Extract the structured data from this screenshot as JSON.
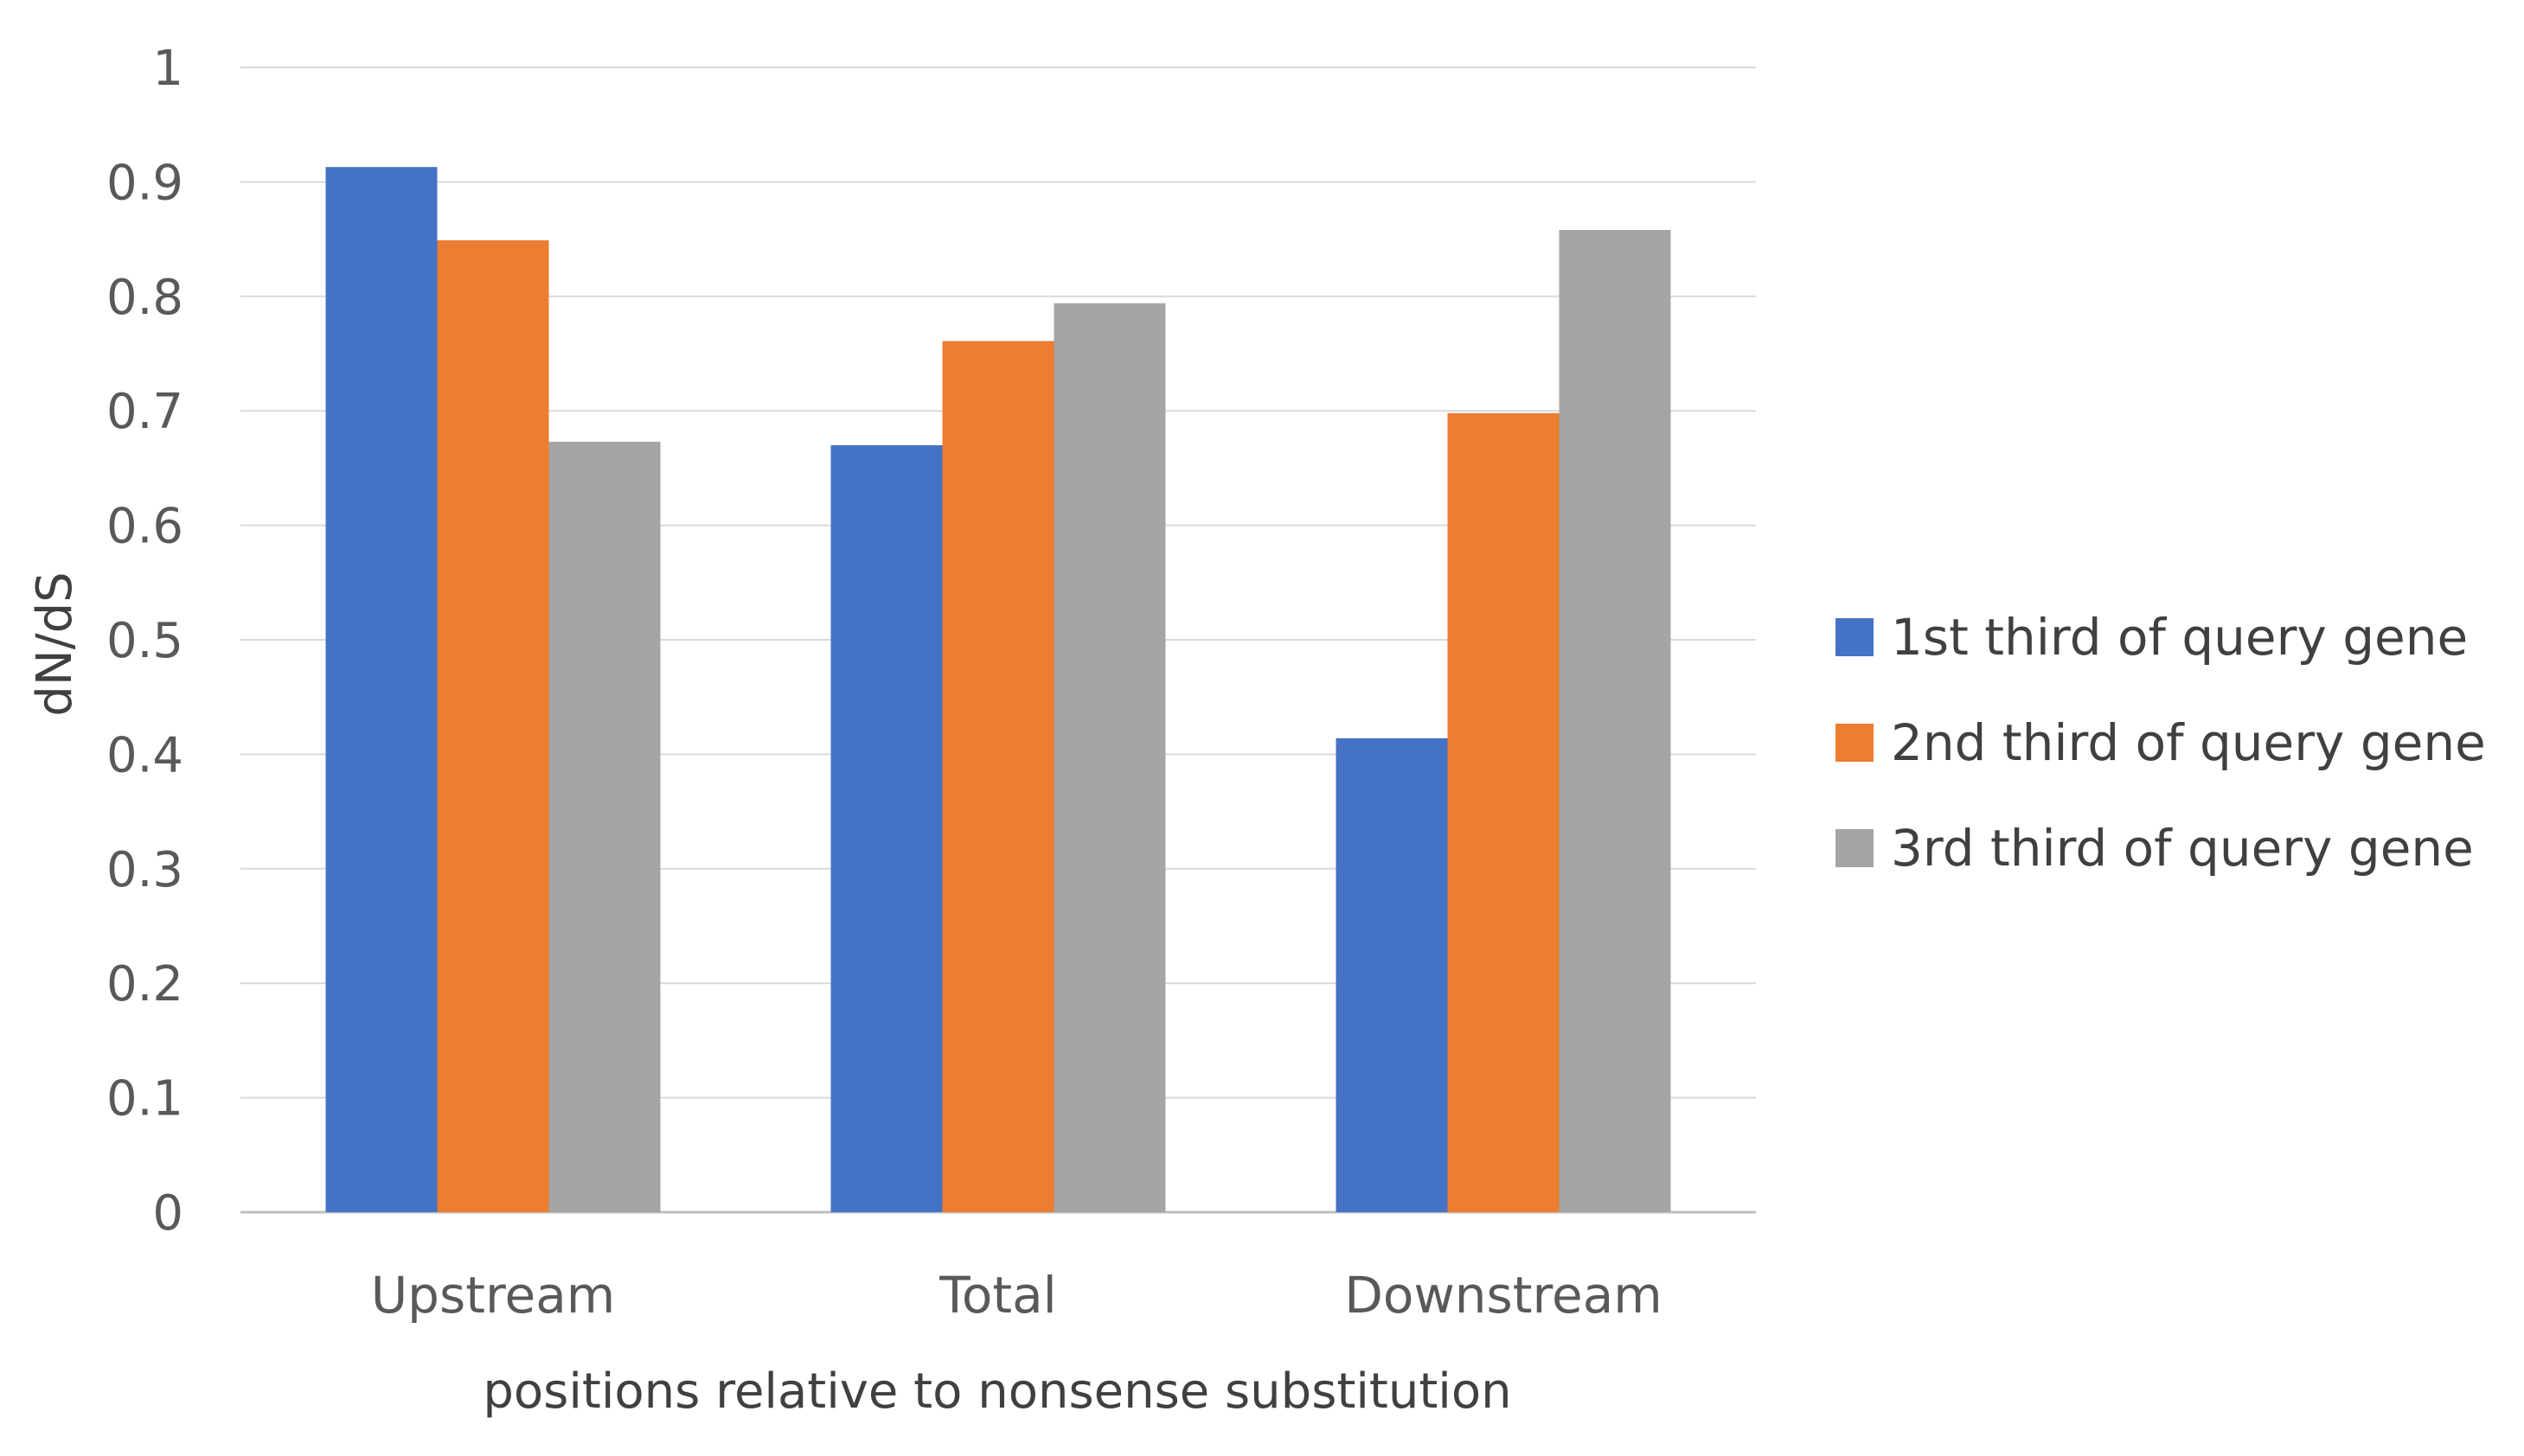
{
  "chart_data": {
    "type": "bar",
    "title": "",
    "xlabel": "positions relative to nonsense substitution",
    "ylabel": "dN/dS",
    "ylim": [
      0,
      1
    ],
    "yticks": [
      "0",
      "0.1",
      "0.2",
      "0.3",
      "0.4",
      "0.5",
      "0.6",
      "0.7",
      "0.8",
      "0.9",
      "1"
    ],
    "categories": [
      "Upstream",
      "Total",
      "Downstream"
    ],
    "series": [
      {
        "name": "1st third of query gene",
        "color": "#4472C4",
        "values": [
          0.913,
          0.67,
          0.414
        ]
      },
      {
        "name": "2nd third of query gene",
        "color": "#ED7D31",
        "values": [
          0.849,
          0.761,
          0.698
        ]
      },
      {
        "name": "3rd third of query gene",
        "color": "#A5A5A5",
        "values": [
          0.673,
          0.794,
          0.858
        ]
      }
    ],
    "grid": true,
    "legend_position": "right"
  }
}
